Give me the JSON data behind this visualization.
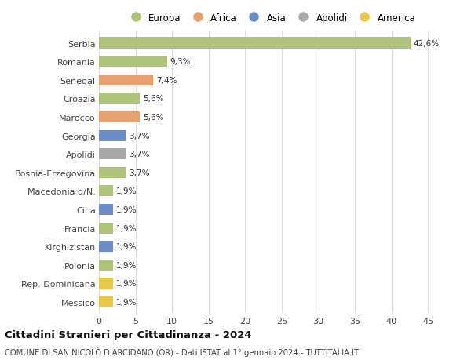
{
  "categories": [
    "Serbia",
    "Romania",
    "Senegal",
    "Croazia",
    "Marocco",
    "Georgia",
    "Apolidi",
    "Bosnia-Erzegovina",
    "Macedonia d/N.",
    "Cina",
    "Francia",
    "Kirghizistan",
    "Polonia",
    "Rep. Dominicana",
    "Messico"
  ],
  "values": [
    42.6,
    9.3,
    7.4,
    5.6,
    5.6,
    3.7,
    3.7,
    3.7,
    1.9,
    1.9,
    1.9,
    1.9,
    1.9,
    1.9,
    1.9
  ],
  "bar_colors": [
    "#adc47a",
    "#adc47a",
    "#e8a070",
    "#adc47a",
    "#e8a070",
    "#6b8ec9",
    "#aaaaaa",
    "#adc47a",
    "#adc47a",
    "#6b8ec9",
    "#adc47a",
    "#6b8ec9",
    "#adc47a",
    "#e8c84a",
    "#e8c84a"
  ],
  "labels": [
    "42,6%",
    "9,3%",
    "7,4%",
    "5,6%",
    "5,6%",
    "3,7%",
    "3,7%",
    "3,7%",
    "1,9%",
    "1,9%",
    "1,9%",
    "1,9%",
    "1,9%",
    "1,9%",
    "1,9%"
  ],
  "legend_labels": [
    "Europa",
    "Africa",
    "Asia",
    "Apolidi",
    "America"
  ],
  "legend_colors": [
    "#adc47a",
    "#e8a070",
    "#6b8ec9",
    "#aaaaaa",
    "#e8c84a"
  ],
  "xlim": [
    0,
    47
  ],
  "xticks": [
    0,
    5,
    10,
    15,
    20,
    25,
    30,
    35,
    40,
    45
  ],
  "title": "Cittadini Stranieri per Cittadinanza - 2024",
  "subtitle": "COMUNE DI SAN NICOLÒ D'ARCIDANO (OR) - Dati ISTAT al 1° gennaio 2024 - TUTTITALIA.IT",
  "background_color": "#ffffff",
  "grid_color": "#dddddd",
  "bar_height": 0.6,
  "label_fontsize": 7.5,
  "ytick_fontsize": 8.0,
  "xtick_fontsize": 8.0,
  "legend_fontsize": 8.5,
  "title_fontsize": 9.5,
  "subtitle_fontsize": 7.2
}
